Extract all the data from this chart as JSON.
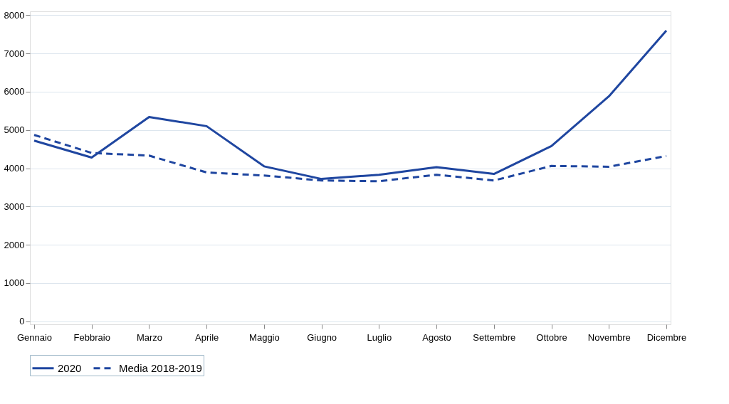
{
  "chart_data": {
    "type": "line",
    "categories": [
      "Gennaio",
      "Febbraio",
      "Marzo",
      "Aprile",
      "Maggio",
      "Giugno",
      "Luglio",
      "Agosto",
      "Settembre",
      "Ottobre",
      "Novembre",
      "Dicembre"
    ],
    "series": [
      {
        "name": "2020",
        "color": "#1f46a0",
        "line_style": "solid",
        "values": [
          4720,
          4280,
          5340,
          5100,
          4050,
          3720,
          3830,
          4030,
          3850,
          4580,
          5880,
          7600
        ]
      },
      {
        "name": "Media 2018-2019",
        "color": "#1f46a0",
        "line_style": "dashed",
        "values": [
          4870,
          4400,
          4330,
          3890,
          3810,
          3680,
          3660,
          3830,
          3680,
          4060,
          4040,
          4320
        ]
      }
    ],
    "ylim": [
      -80,
      8100
    ],
    "yticks": [
      0,
      1000,
      2000,
      3000,
      4000,
      5000,
      6000,
      7000,
      8000
    ],
    "grid": "y",
    "legend": "bottom",
    "marker": "none"
  }
}
